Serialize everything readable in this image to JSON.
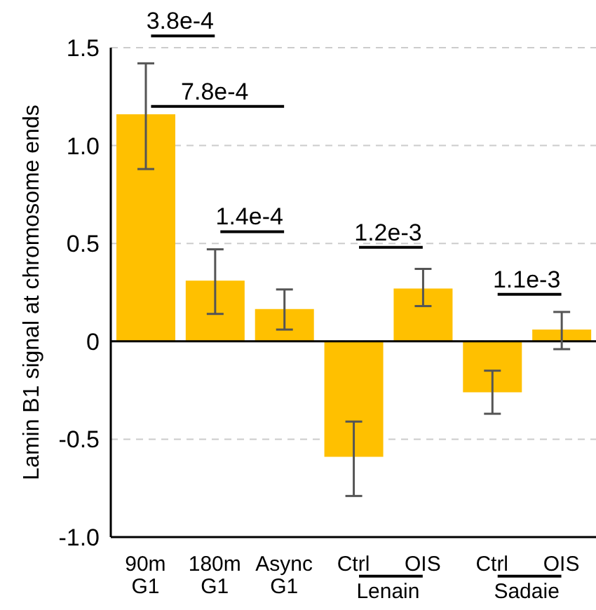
{
  "chart_data": {
    "type": "bar",
    "ylabel": "Lamin B1 signal at chromosome ends",
    "categories": [
      "90m\nG1",
      "180m\nG1",
      "Async\nG1",
      "Ctrl",
      "OIS",
      "Ctrl",
      "OIS"
    ],
    "values": [
      1.16,
      0.31,
      0.165,
      -0.59,
      0.27,
      -0.26,
      0.06
    ],
    "errors": [
      [
        0.88,
        1.42
      ],
      [
        0.14,
        0.47
      ],
      [
        0.06,
        0.265
      ],
      [
        -0.79,
        -0.41
      ],
      [
        0.18,
        0.37
      ],
      [
        -0.37,
        -0.15
      ],
      [
        -0.04,
        0.15
      ]
    ],
    "color": "#ffc000",
    "ylim": [
      -1.0,
      1.5
    ],
    "yticks": [
      {
        "value": -1.0,
        "label": "-1.0"
      },
      {
        "value": -0.5,
        "label": "-0.5"
      },
      0,
      {
        "value": 0.5,
        "label": "0.5"
      },
      {
        "value": 1.0,
        "label": "1.0"
      },
      {
        "value": 1.5,
        "label": "1.5"
      }
    ],
    "grid": "y",
    "ref_lines": [
      {
        "axis": "y",
        "value": 0,
        "color": "#000000"
      }
    ],
    "annotations": [
      "3.8e-4",
      "7.8e-4",
      "1.4e-4",
      "1.2e-3",
      "1.1e-3",
      "Lenain",
      "Sadaie"
    ]
  }
}
